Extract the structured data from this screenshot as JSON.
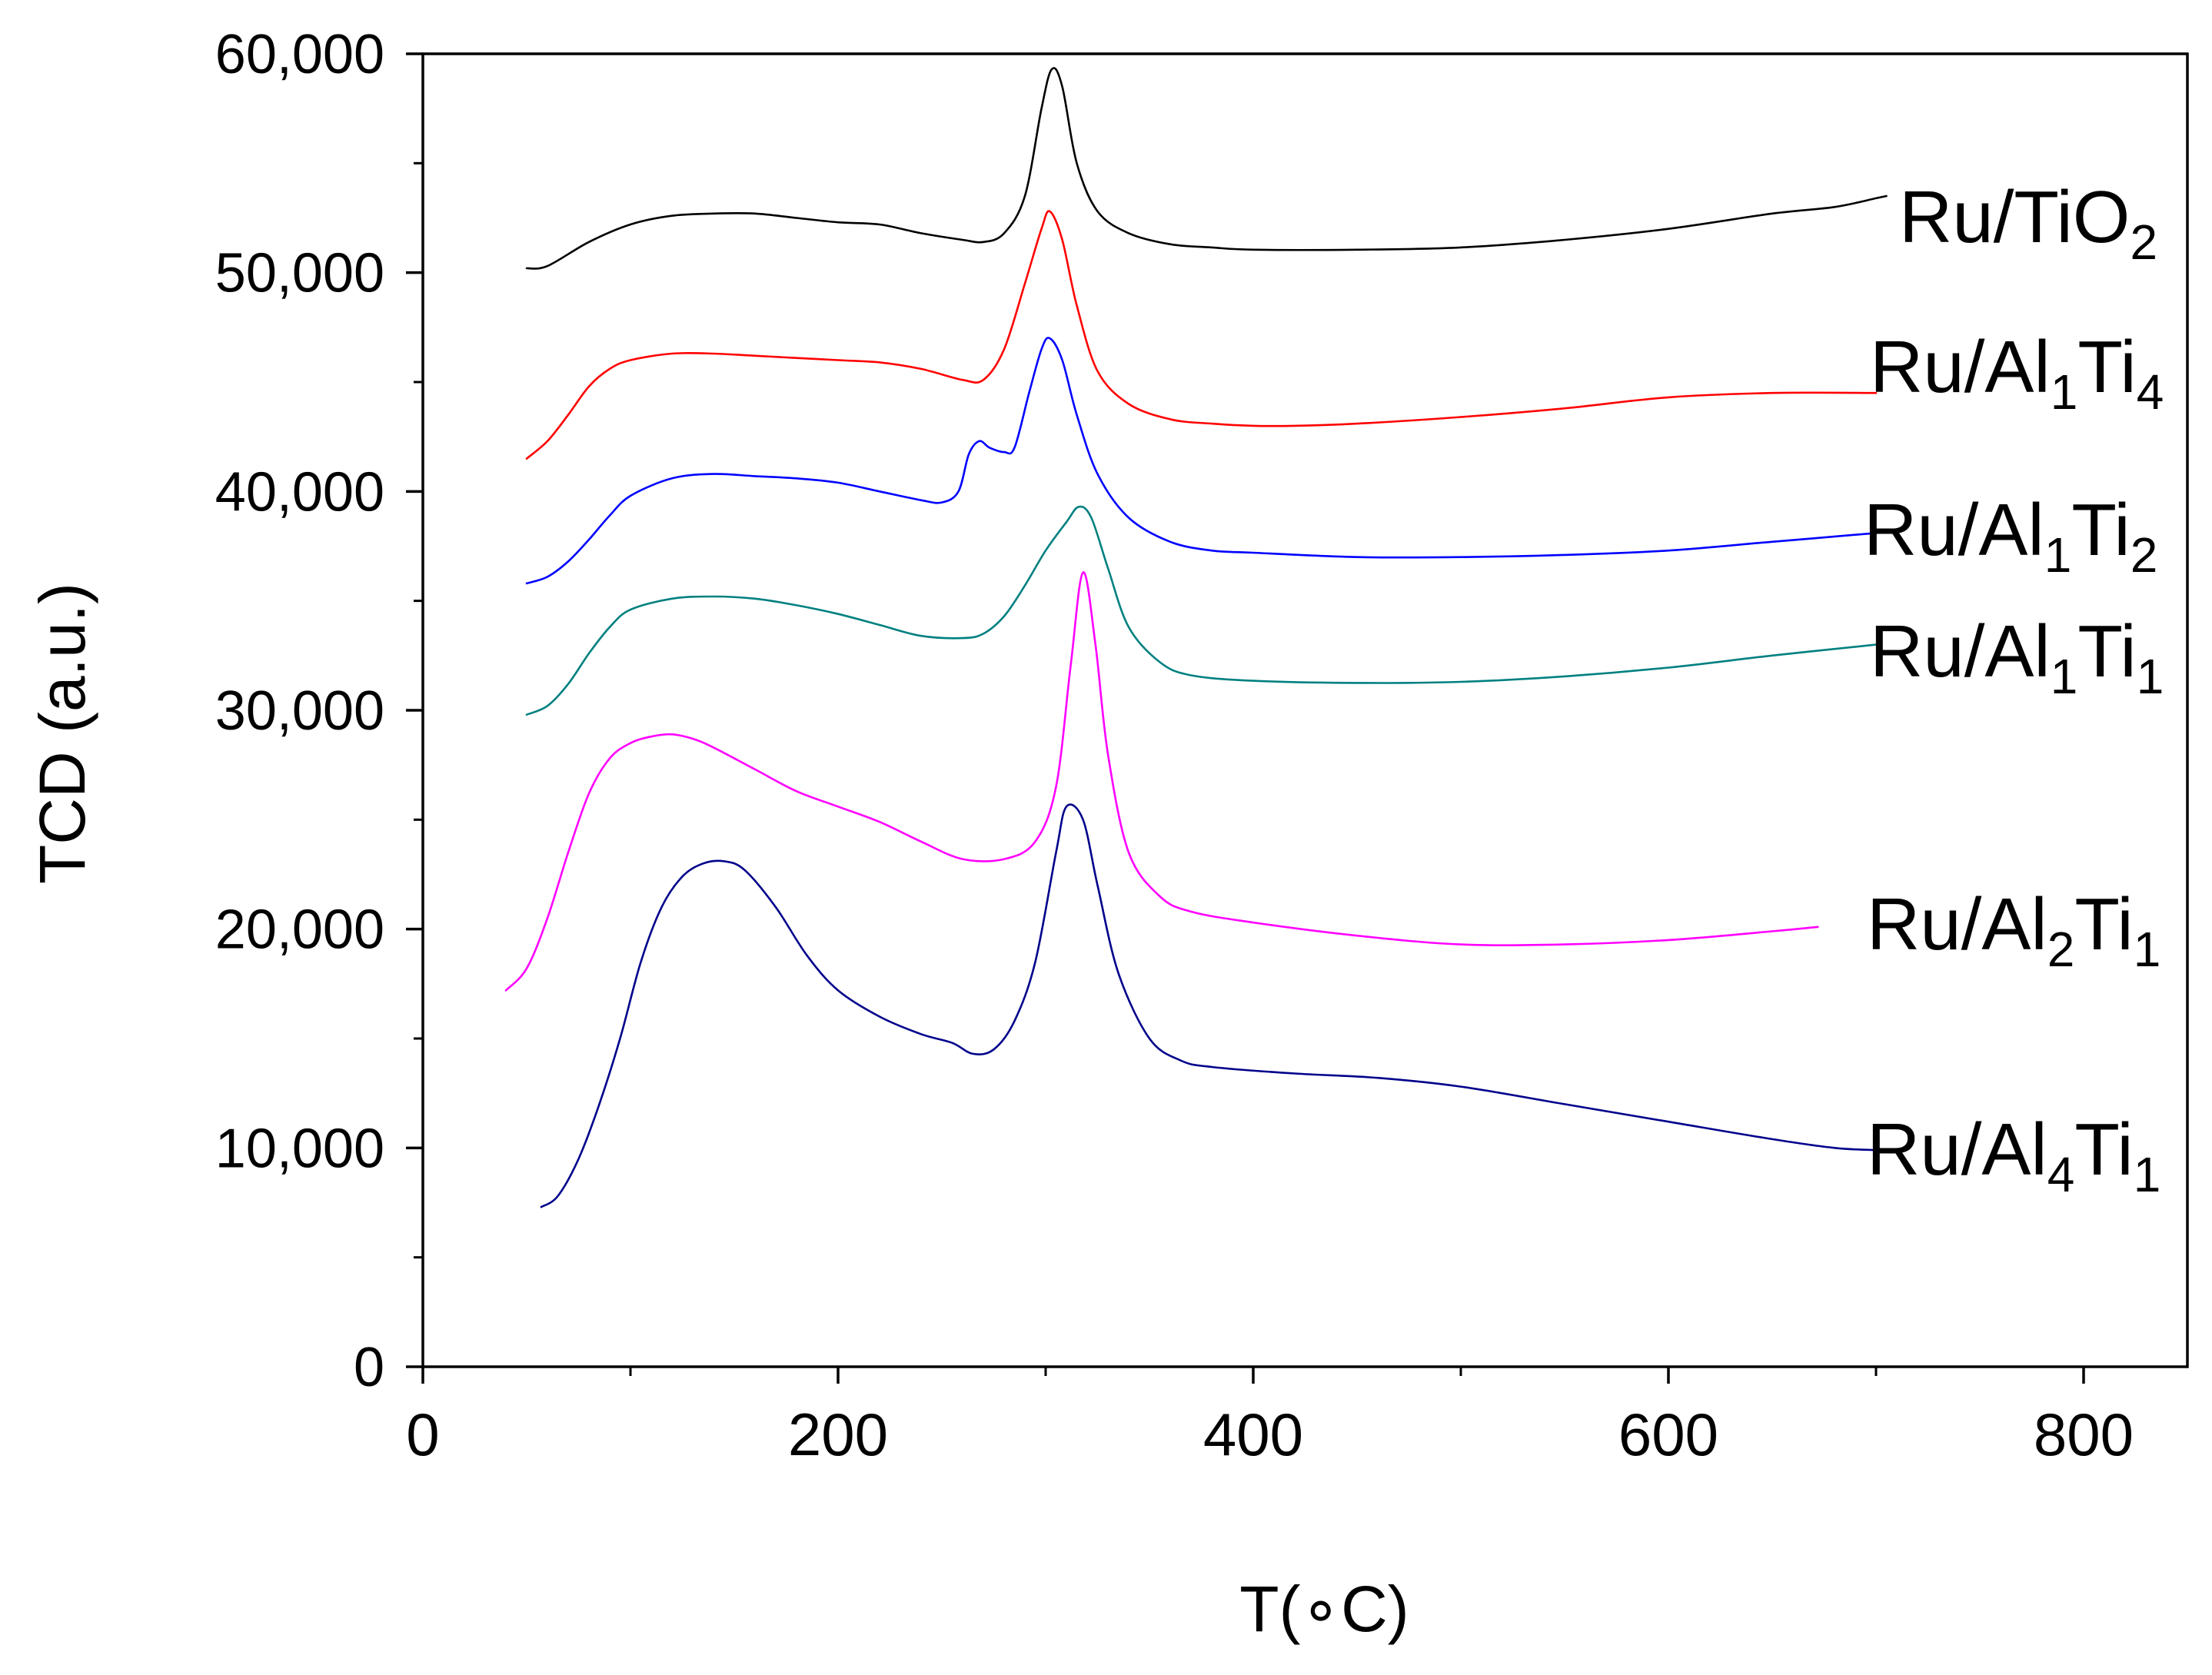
{
  "chart_data": {
    "type": "line",
    "title": "",
    "xlabel": "T(∘C)",
    "ylabel": "TCD (a.u.)",
    "xlim": [
      0,
      850
    ],
    "ylim": [
      0,
      60000
    ],
    "x_ticks": [
      0,
      200,
      400,
      600,
      800
    ],
    "x_tick_labels": [
      "0",
      "200",
      "400",
      "600",
      "800"
    ],
    "x_minor_ticks": [
      100,
      300,
      500,
      700
    ],
    "y_ticks": [
      0,
      10000,
      20000,
      30000,
      40000,
      50000,
      60000
    ],
    "y_tick_labels": [
      "0",
      "10,000",
      "20,000",
      "30,000",
      "40,000",
      "50,000",
      "60,000"
    ],
    "y_minor_ticks": [
      5000,
      15000,
      25000,
      35000,
      45000,
      55000
    ],
    "grid": false,
    "legend": "inline labels at right end of each curve",
    "series": [
      {
        "name": "Ru/TiO2",
        "label_main": "Ru/TiO",
        "label_sub": "2",
        "label_sub_position": "end",
        "color": "#000000",
        "points": [
          [
            50,
            50200
          ],
          [
            60,
            50300
          ],
          [
            80,
            51400
          ],
          [
            100,
            52200
          ],
          [
            120,
            52600
          ],
          [
            140,
            52700
          ],
          [
            160,
            52700
          ],
          [
            180,
            52500
          ],
          [
            200,
            52300
          ],
          [
            220,
            52200
          ],
          [
            240,
            51800
          ],
          [
            260,
            51500
          ],
          [
            270,
            51400
          ],
          [
            280,
            51800
          ],
          [
            290,
            53500
          ],
          [
            298,
            57500
          ],
          [
            303,
            59300
          ],
          [
            308,
            58500
          ],
          [
            315,
            55000
          ],
          [
            325,
            52800
          ],
          [
            340,
            51800
          ],
          [
            360,
            51300
          ],
          [
            380,
            51150
          ],
          [
            400,
            51050
          ],
          [
            450,
            51050
          ],
          [
            500,
            51150
          ],
          [
            550,
            51500
          ],
          [
            600,
            52000
          ],
          [
            650,
            52700
          ],
          [
            680,
            53000
          ],
          [
            700,
            53400
          ],
          [
            705,
            53500
          ]
        ]
      },
      {
        "name": "Ru/Al1Ti4",
        "label_main": "Ru/Al",
        "label_sub1": "1",
        "label_mid": "Ti",
        "label_sub2": "4",
        "color": "#ff0000",
        "points": [
          [
            50,
            41500
          ],
          [
            60,
            42300
          ],
          [
            70,
            43500
          ],
          [
            80,
            44800
          ],
          [
            90,
            45600
          ],
          [
            100,
            46000
          ],
          [
            120,
            46300
          ],
          [
            140,
            46300
          ],
          [
            160,
            46200
          ],
          [
            180,
            46100
          ],
          [
            200,
            46000
          ],
          [
            220,
            45900
          ],
          [
            240,
            45600
          ],
          [
            260,
            45100
          ],
          [
            270,
            45100
          ],
          [
            280,
            46500
          ],
          [
            290,
            49500
          ],
          [
            298,
            52000
          ],
          [
            302,
            52800
          ],
          [
            308,
            51500
          ],
          [
            315,
            48500
          ],
          [
            325,
            45500
          ],
          [
            340,
            44000
          ],
          [
            360,
            43300
          ],
          [
            380,
            43100
          ],
          [
            400,
            43000
          ],
          [
            420,
            43000
          ],
          [
            450,
            43100
          ],
          [
            500,
            43400
          ],
          [
            550,
            43800
          ],
          [
            600,
            44300
          ],
          [
            650,
            44500
          ],
          [
            700,
            44500
          ]
        ]
      },
      {
        "name": "Ru/Al1Ti2",
        "label_main": "Ru/Al",
        "label_sub1": "1",
        "label_mid": "Ti",
        "label_sub2": "2",
        "color": "#0000ff",
        "points": [
          [
            50,
            35800
          ],
          [
            60,
            36100
          ],
          [
            70,
            36800
          ],
          [
            80,
            37800
          ],
          [
            90,
            38900
          ],
          [
            100,
            39800
          ],
          [
            120,
            40600
          ],
          [
            140,
            40800
          ],
          [
            160,
            40700
          ],
          [
            180,
            40600
          ],
          [
            200,
            40400
          ],
          [
            220,
            40000
          ],
          [
            240,
            39600
          ],
          [
            250,
            39500
          ],
          [
            258,
            40000
          ],
          [
            263,
            41700
          ],
          [
            268,
            42300
          ],
          [
            273,
            42000
          ],
          [
            280,
            41800
          ],
          [
            285,
            42000
          ],
          [
            292,
            44500
          ],
          [
            298,
            46500
          ],
          [
            302,
            47000
          ],
          [
            308,
            46000
          ],
          [
            315,
            43500
          ],
          [
            325,
            40800
          ],
          [
            340,
            38800
          ],
          [
            360,
            37700
          ],
          [
            380,
            37300
          ],
          [
            400,
            37200
          ],
          [
            450,
            37000
          ],
          [
            500,
            37000
          ],
          [
            550,
            37100
          ],
          [
            600,
            37300
          ],
          [
            650,
            37700
          ],
          [
            700,
            38100
          ],
          [
            705,
            38200
          ]
        ]
      },
      {
        "name": "Ru/Al1Ti1",
        "label_main": "Ru/Al",
        "label_sub1": "1",
        "label_mid": "Ti",
        "label_sub2": "1",
        "color": "#008080",
        "points": [
          [
            50,
            29800
          ],
          [
            60,
            30200
          ],
          [
            70,
            31200
          ],
          [
            80,
            32600
          ],
          [
            90,
            33800
          ],
          [
            100,
            34600
          ],
          [
            120,
            35100
          ],
          [
            140,
            35200
          ],
          [
            160,
            35100
          ],
          [
            180,
            34800
          ],
          [
            200,
            34400
          ],
          [
            220,
            33900
          ],
          [
            240,
            33400
          ],
          [
            260,
            33300
          ],
          [
            270,
            33500
          ],
          [
            280,
            34300
          ],
          [
            290,
            35700
          ],
          [
            300,
            37300
          ],
          [
            310,
            38600
          ],
          [
            316,
            39300
          ],
          [
            322,
            38800
          ],
          [
            330,
            36500
          ],
          [
            340,
            33800
          ],
          [
            355,
            32200
          ],
          [
            370,
            31600
          ],
          [
            400,
            31350
          ],
          [
            450,
            31250
          ],
          [
            500,
            31300
          ],
          [
            550,
            31550
          ],
          [
            600,
            31950
          ],
          [
            650,
            32500
          ],
          [
            700,
            33000
          ]
        ]
      },
      {
        "name": "Ru/Al2Ti1",
        "label_main": "Ru/Al",
        "label_sub1": "2",
        "label_mid": "Ti",
        "label_sub2": "1",
        "color": "#ff00ff",
        "points": [
          [
            40,
            17200
          ],
          [
            50,
            18200
          ],
          [
            60,
            20500
          ],
          [
            70,
            23500
          ],
          [
            80,
            26200
          ],
          [
            90,
            27800
          ],
          [
            100,
            28500
          ],
          [
            110,
            28800
          ],
          [
            120,
            28900
          ],
          [
            130,
            28700
          ],
          [
            140,
            28300
          ],
          [
            160,
            27300
          ],
          [
            180,
            26300
          ],
          [
            200,
            25600
          ],
          [
            220,
            24900
          ],
          [
            240,
            24000
          ],
          [
            260,
            23200
          ],
          [
            280,
            23200
          ],
          [
            295,
            24000
          ],
          [
            305,
            26500
          ],
          [
            312,
            32000
          ],
          [
            318,
            36300
          ],
          [
            324,
            33000
          ],
          [
            330,
            28000
          ],
          [
            340,
            23500
          ],
          [
            355,
            21500
          ],
          [
            370,
            20800
          ],
          [
            400,
            20300
          ],
          [
            450,
            19700
          ],
          [
            500,
            19300
          ],
          [
            550,
            19300
          ],
          [
            600,
            19500
          ],
          [
            650,
            19900
          ],
          [
            672,
            20100
          ]
        ]
      },
      {
        "name": "Ru/Al4Ti1",
        "label_main": "Ru/Al",
        "label_sub1": "4",
        "label_mid": "Ti",
        "label_sub2": "1",
        "color": "#00008b",
        "points": [
          [
            57,
            7300
          ],
          [
            65,
            7800
          ],
          [
            75,
            9500
          ],
          [
            85,
            12000
          ],
          [
            95,
            15000
          ],
          [
            105,
            18500
          ],
          [
            115,
            21000
          ],
          [
            125,
            22400
          ],
          [
            135,
            23000
          ],
          [
            145,
            23100
          ],
          [
            155,
            22700
          ],
          [
            170,
            21000
          ],
          [
            185,
            18800
          ],
          [
            200,
            17200
          ],
          [
            220,
            16000
          ],
          [
            240,
            15200
          ],
          [
            255,
            14800
          ],
          [
            265,
            14300
          ],
          [
            275,
            14500
          ],
          [
            285,
            15800
          ],
          [
            295,
            18500
          ],
          [
            305,
            23500
          ],
          [
            310,
            25600
          ],
          [
            318,
            25000
          ],
          [
            325,
            22000
          ],
          [
            335,
            18000
          ],
          [
            350,
            15000
          ],
          [
            365,
            14000
          ],
          [
            380,
            13700
          ],
          [
            420,
            13400
          ],
          [
            460,
            13200
          ],
          [
            500,
            12800
          ],
          [
            550,
            12000
          ],
          [
            600,
            11200
          ],
          [
            650,
            10400
          ],
          [
            680,
            10000
          ],
          [
            700,
            9900
          ]
        ]
      }
    ]
  }
}
